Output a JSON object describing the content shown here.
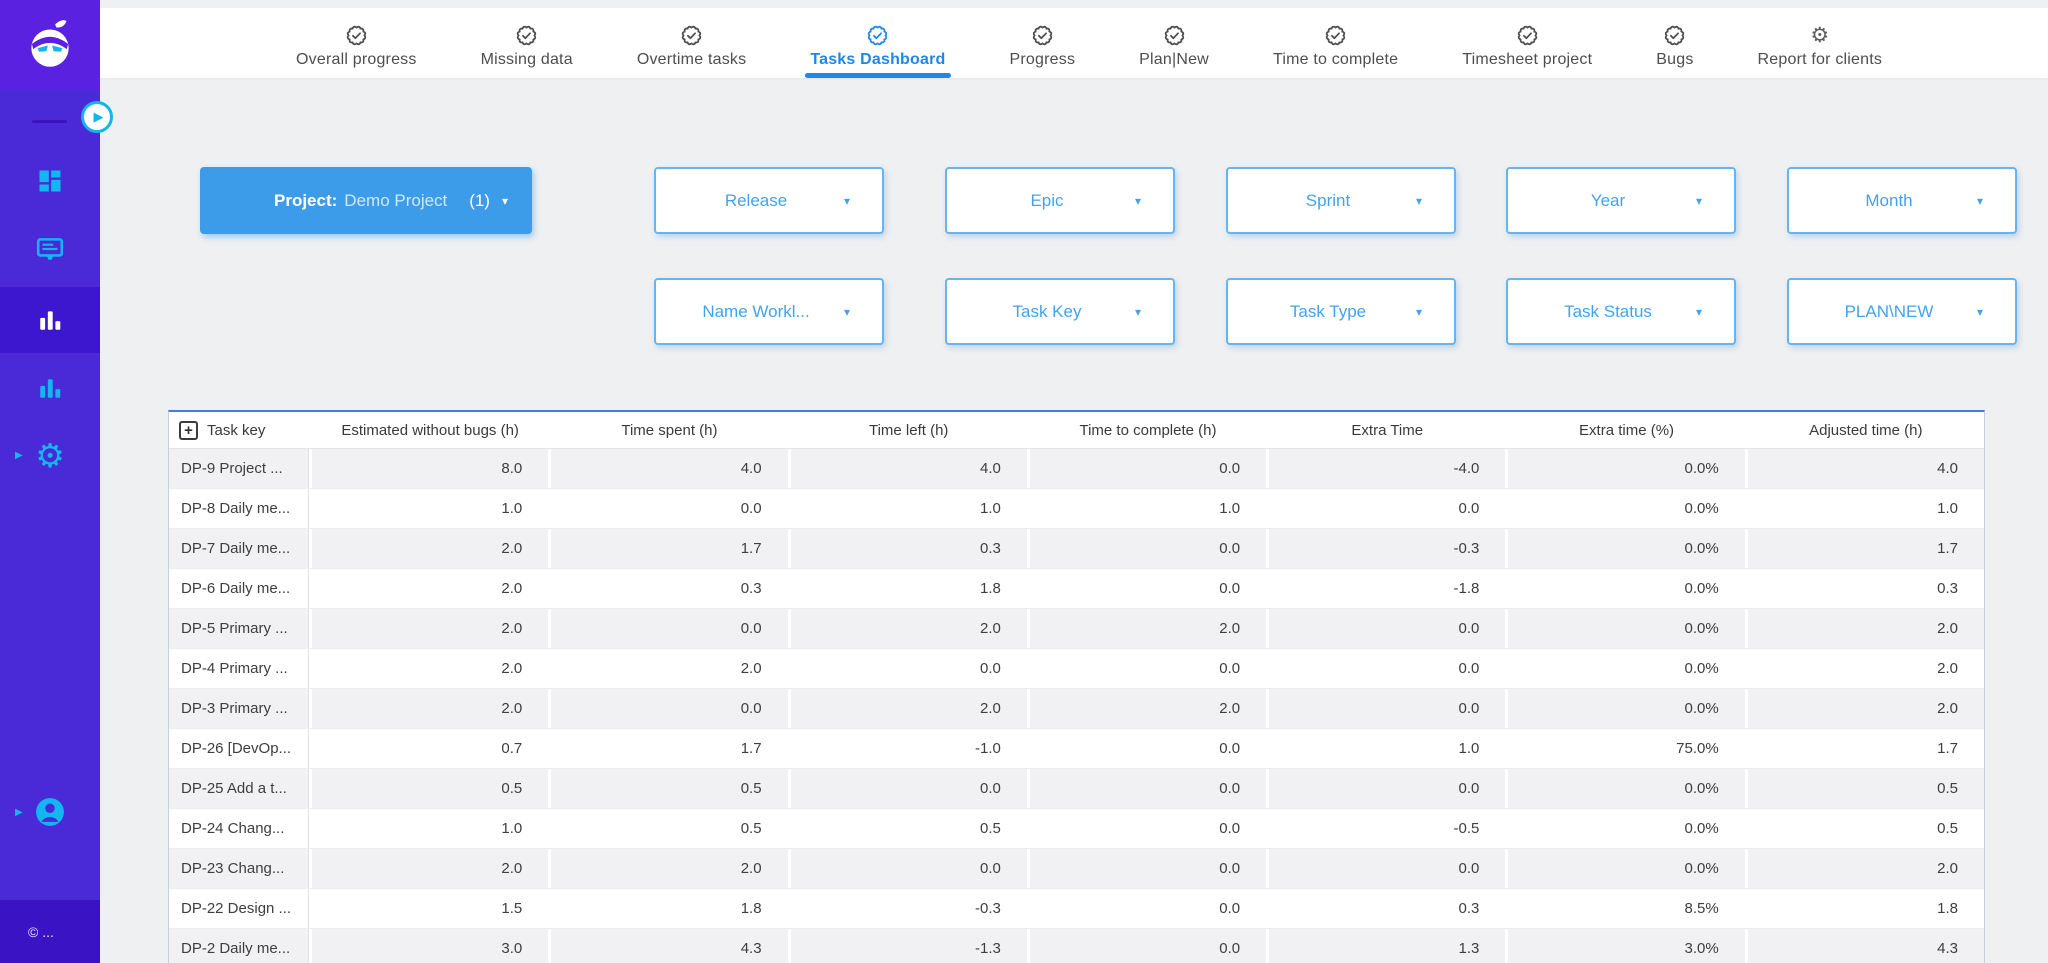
{
  "icons": {
    "caret_down": "▾",
    "gear": "⚙",
    "play": "▶",
    "plus": "+"
  },
  "sidebar": {
    "copyright": "© ..."
  },
  "nav": {
    "tabs": [
      {
        "label": "Overall progress",
        "icon": "seal-check",
        "active": false
      },
      {
        "label": "Missing data",
        "icon": "seal-check",
        "active": false
      },
      {
        "label": "Overtime tasks",
        "icon": "seal-check",
        "active": false
      },
      {
        "label": "Tasks Dashboard",
        "icon": "seal-check",
        "active": true
      },
      {
        "label": "Progress",
        "icon": "seal-check",
        "active": false
      },
      {
        "label": "Plan|New",
        "icon": "seal-check",
        "active": false
      },
      {
        "label": "Time to complete",
        "icon": "seal-check",
        "active": false
      },
      {
        "label": "Timesheet project",
        "icon": "seal-check",
        "active": false
      },
      {
        "label": "Bugs",
        "icon": "seal-check",
        "active": false
      },
      {
        "label": "Report for clients",
        "icon": "gear",
        "active": false
      }
    ]
  },
  "filters": {
    "project": {
      "label": "Project:",
      "value": "Demo Project",
      "count": "(1)"
    },
    "row1": [
      "Release",
      "Epic",
      "Sprint",
      "Year",
      "Month"
    ],
    "row2": [
      "Name Workl...",
      "Task Key",
      "Task Type",
      "Task Status",
      "PLAN\\NEW"
    ]
  },
  "table": {
    "columns": [
      "Task key",
      "Estimated without bugs (h)",
      "Time spent (h)",
      "Time left (h)",
      "Time to complete (h)",
      "Extra Time",
      "Extra time (%)",
      "Adjusted time (h)"
    ],
    "rows": [
      {
        "key": "DP-9 Project ...",
        "values": [
          "8.0",
          "4.0",
          "4.0",
          "0.0",
          "-4.0",
          "0.0%",
          "4.0"
        ]
      },
      {
        "key": "DP-8 Daily me...",
        "values": [
          "1.0",
          "0.0",
          "1.0",
          "1.0",
          "0.0",
          "0.0%",
          "1.0"
        ]
      },
      {
        "key": "DP-7 Daily me...",
        "values": [
          "2.0",
          "1.7",
          "0.3",
          "0.0",
          "-0.3",
          "0.0%",
          "1.7"
        ]
      },
      {
        "key": "DP-6 Daily me...",
        "values": [
          "2.0",
          "0.3",
          "1.8",
          "0.0",
          "-1.8",
          "0.0%",
          "0.3"
        ]
      },
      {
        "key": "DP-5 Primary ...",
        "values": [
          "2.0",
          "0.0",
          "2.0",
          "2.0",
          "0.0",
          "0.0%",
          "2.0"
        ]
      },
      {
        "key": "DP-4 Primary ...",
        "values": [
          "2.0",
          "2.0",
          "0.0",
          "0.0",
          "0.0",
          "0.0%",
          "2.0"
        ]
      },
      {
        "key": "DP-3 Primary ...",
        "values": [
          "2.0",
          "0.0",
          "2.0",
          "2.0",
          "0.0",
          "0.0%",
          "2.0"
        ]
      },
      {
        "key": "DP-26 [DevOp...",
        "values": [
          "0.7",
          "1.7",
          "-1.0",
          "0.0",
          "1.0",
          "75.0%",
          "1.7"
        ]
      },
      {
        "key": "DP-25 Add a t...",
        "values": [
          "0.5",
          "0.5",
          "0.0",
          "0.0",
          "0.0",
          "0.0%",
          "0.5"
        ]
      },
      {
        "key": "DP-24 Chang...",
        "values": [
          "1.0",
          "0.5",
          "0.5",
          "0.0",
          "-0.5",
          "0.0%",
          "0.5"
        ]
      },
      {
        "key": "DP-23 Chang...",
        "values": [
          "2.0",
          "2.0",
          "0.0",
          "0.0",
          "0.0",
          "0.0%",
          "2.0"
        ]
      },
      {
        "key": "DP-22 Design ...",
        "values": [
          "1.5",
          "1.8",
          "-0.3",
          "0.0",
          "0.3",
          "8.5%",
          "1.8"
        ]
      },
      {
        "key": "DP-2 Daily me...",
        "values": [
          "3.0",
          "4.3",
          "-1.3",
          "0.0",
          "1.3",
          "3.0%",
          "4.3"
        ]
      }
    ]
  }
}
